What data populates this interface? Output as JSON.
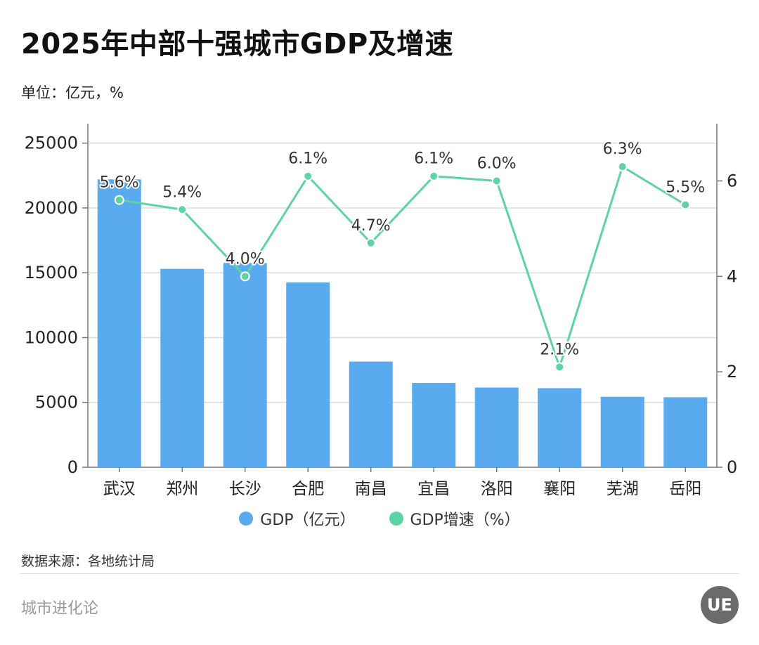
{
  "title": "2025年中部十强城市GDP及增速",
  "unit_note": "单位：亿元，%",
  "source_note": "数据来源：各地统计局",
  "brand": "城市进化论",
  "logo_text": "UE",
  "colors": {
    "bar": "#5aaaef",
    "line": "#5ed4a4",
    "axis": "#777777",
    "grid": "#dddddd"
  },
  "legend": [
    {
      "label": "GDP（亿元）",
      "color": "#5aaaef"
    },
    {
      "label": "GDP增速（%）",
      "color": "#5ed4a4"
    }
  ],
  "chart_data": {
    "type": "bar",
    "categories": [
      "武汉",
      "郑州",
      "长沙",
      "合肥",
      "南昌",
      "宜昌",
      "洛阳",
      "襄阳",
      "芜湖",
      "岳阳"
    ],
    "series": [
      {
        "name": "GDP（亿元）",
        "type": "bar",
        "axis": "left",
        "values": [
          22200,
          15300,
          15750,
          14250,
          8150,
          6500,
          6150,
          6100,
          5430,
          5400
        ]
      },
      {
        "name": "GDP增速（%）",
        "type": "line",
        "axis": "right",
        "values": [
          5.6,
          5.4,
          4.0,
          6.1,
          4.7,
          6.1,
          6.0,
          2.1,
          6.3,
          5.5
        ],
        "labels": [
          "5.6%",
          "5.4%",
          "4.0%",
          "6.1%",
          "4.7%",
          "6.1%",
          "6.0%",
          "2.1%",
          "6.3%",
          "5.5%"
        ]
      }
    ],
    "left_axis": {
      "min": 0,
      "max": 26500,
      "ticks": [
        0,
        5000,
        10000,
        15000,
        20000,
        25000
      ]
    },
    "right_axis": {
      "min": 0,
      "max": 7.2,
      "ticks": [
        0,
        2,
        4,
        6
      ]
    },
    "grid": true,
    "legend_position": "bottom"
  }
}
